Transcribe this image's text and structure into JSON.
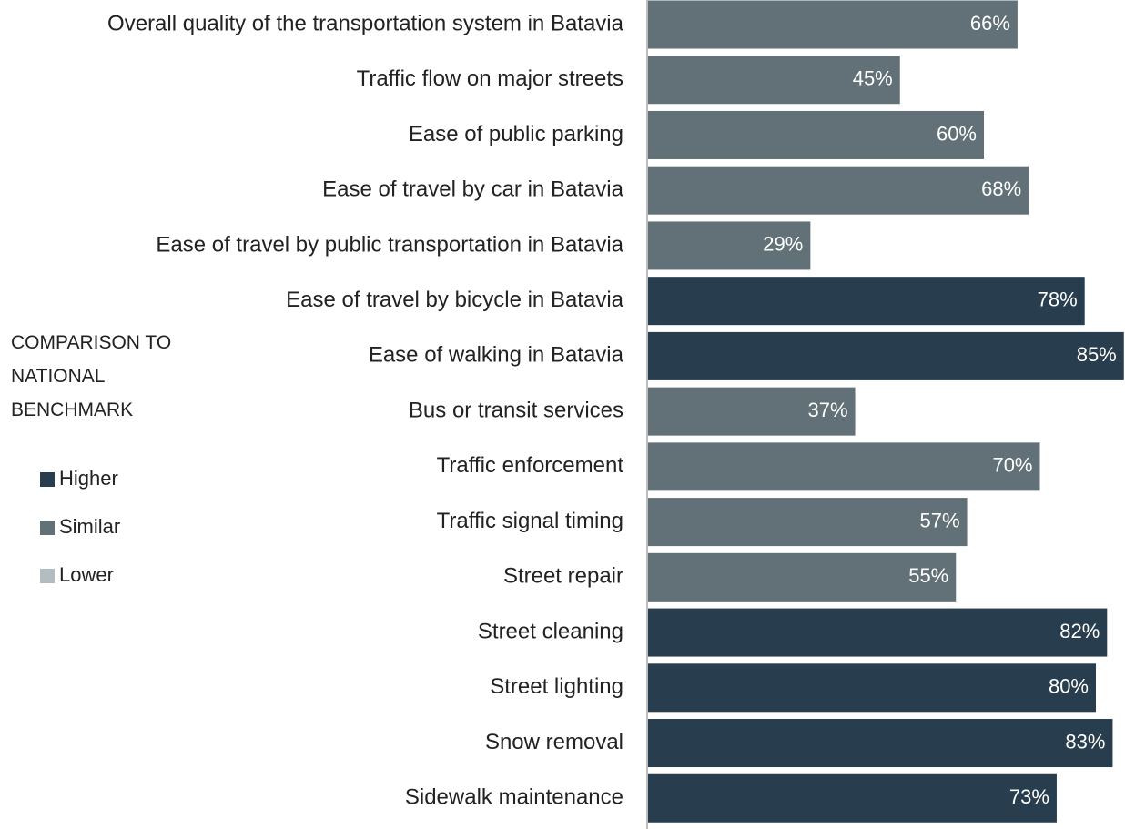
{
  "chart_data": {
    "type": "bar",
    "orientation": "horizontal",
    "categories": [
      "Overall quality of the transportation system in Batavia",
      "Traffic flow on major streets",
      "Ease of public parking",
      "Ease of travel by car in Batavia",
      "Ease of travel by public transportation in Batavia",
      "Ease of travel by bicycle in Batavia",
      "Ease of walking in Batavia",
      "Bus or transit services",
      "Traffic enforcement",
      "Traffic signal timing",
      "Street repair",
      "Street cleaning",
      "Street lighting",
      "Snow removal",
      "Sidewalk maintenance"
    ],
    "values": [
      66,
      45,
      60,
      68,
      29,
      78,
      85,
      37,
      70,
      57,
      55,
      82,
      80,
      83,
      73
    ],
    "value_labels": [
      "66%",
      "45%",
      "60%",
      "68%",
      "29%",
      "78%",
      "85%",
      "37%",
      "70%",
      "57%",
      "55%",
      "82%",
      "80%",
      "83%",
      "73%"
    ],
    "benchmark": [
      "Similar",
      "Similar",
      "Similar",
      "Similar",
      "Similar",
      "Higher",
      "Higher",
      "Similar",
      "Similar",
      "Similar",
      "Similar",
      "Higher",
      "Higher",
      "Higher",
      "Higher"
    ],
    "legend_title": "COMPARISON TO NATIONAL BENCHMARK",
    "legend": [
      {
        "name": "Higher",
        "color": "#283d4d"
      },
      {
        "name": "Similar",
        "color": "#617177"
      },
      {
        "name": "Lower",
        "color": "#b3bcc0"
      }
    ]
  }
}
